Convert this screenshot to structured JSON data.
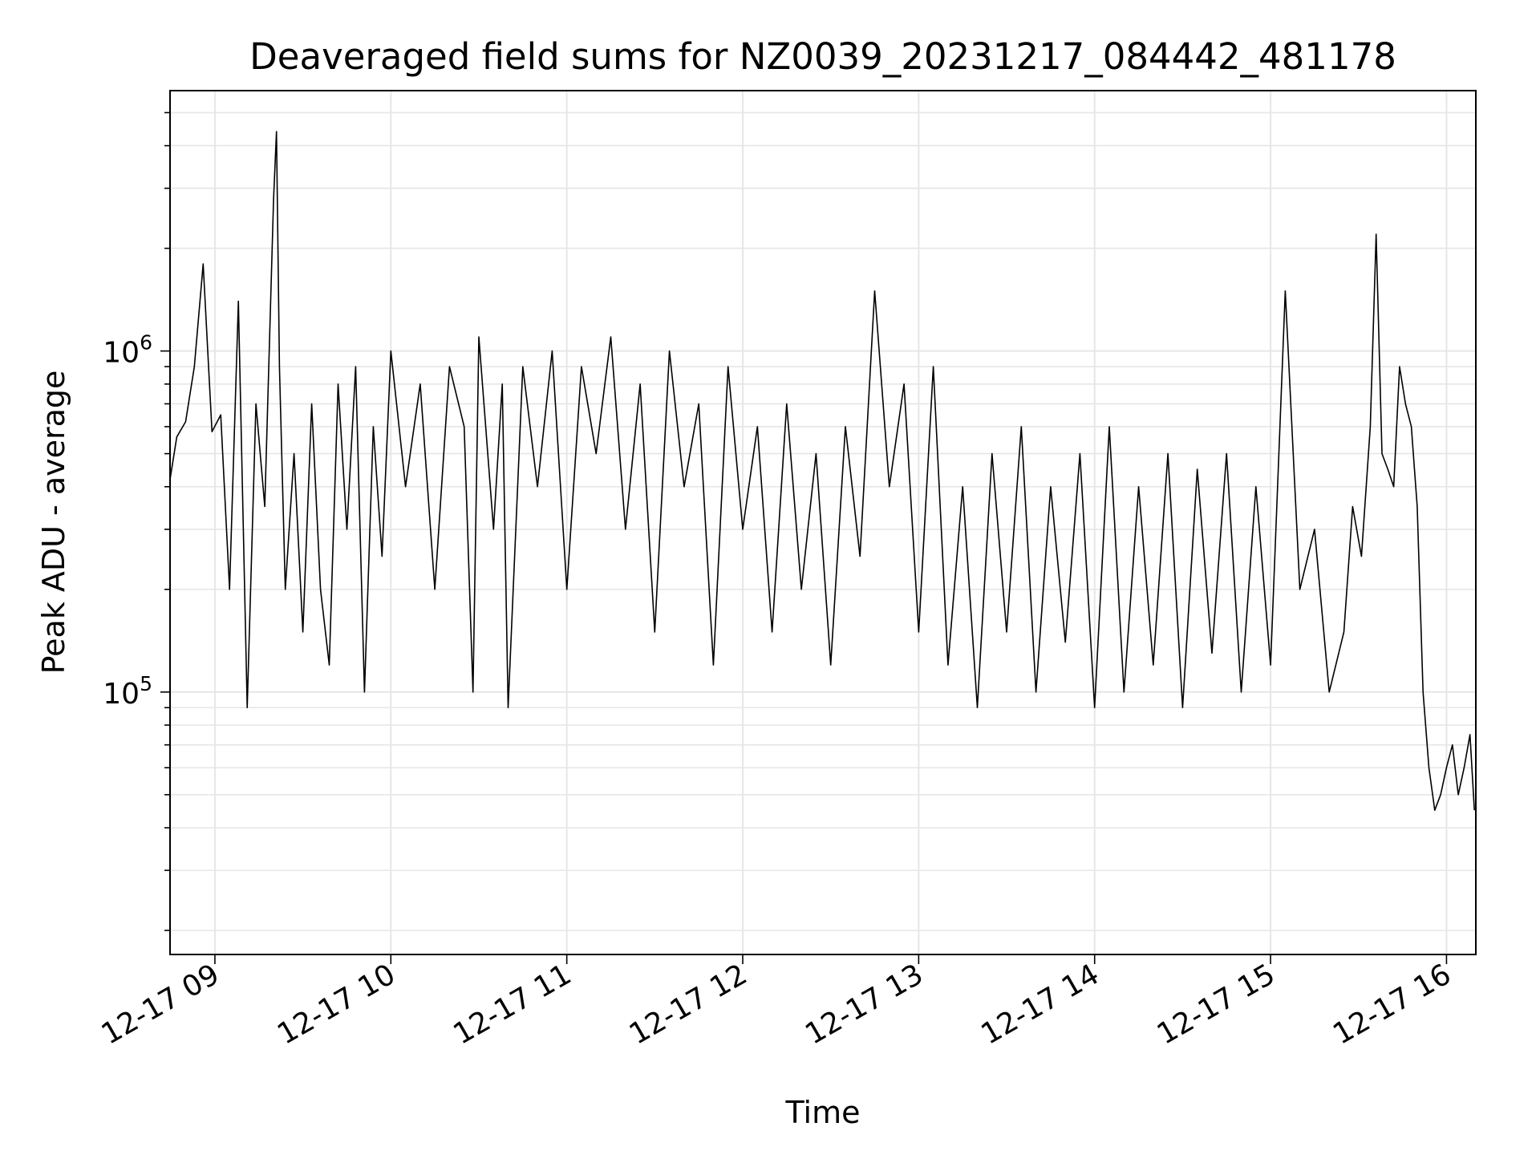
{
  "chart_data": {
    "type": "line",
    "title": "Deaveraged field sums for NZ0039_20231217_084442_481178",
    "xlabel": "Time",
    "ylabel": "Peak ADU - average",
    "xlim": [
      "2023-12-17T08:44:42",
      "2023-12-17T16:10:00"
    ],
    "ylim": [
      17000,
      5800000
    ],
    "yscale": "log",
    "grid": true,
    "legend": "none",
    "line_color": "#000000",
    "x_ticks": [
      {
        "time": "2023-12-17T09:00:00",
        "label": "12-17 09"
      },
      {
        "time": "2023-12-17T10:00:00",
        "label": "12-17 10"
      },
      {
        "time": "2023-12-17T11:00:00",
        "label": "12-17 11"
      },
      {
        "time": "2023-12-17T12:00:00",
        "label": "12-17 12"
      },
      {
        "time": "2023-12-17T13:00:00",
        "label": "12-17 13"
      },
      {
        "time": "2023-12-17T14:00:00",
        "label": "12-17 14"
      },
      {
        "time": "2023-12-17T15:00:00",
        "label": "12-17 15"
      },
      {
        "time": "2023-12-17T16:00:00",
        "label": "12-17 16"
      }
    ],
    "y_ticks": [
      {
        "value": 100000,
        "base": "10",
        "exponent": "5"
      },
      {
        "value": 1000000,
        "base": "10",
        "exponent": "6"
      }
    ],
    "series": [
      {
        "name": "",
        "x": [
          "2023-12-17T08:44:42",
          "2023-12-17T08:47:00",
          "2023-12-17T08:50:00",
          "2023-12-17T08:53:00",
          "2023-12-17T08:56:00",
          "2023-12-17T08:59:00",
          "2023-12-17T09:02:00",
          "2023-12-17T09:05:00",
          "2023-12-17T09:08:00",
          "2023-12-17T09:11:00",
          "2023-12-17T09:14:00",
          "2023-12-17T09:17:00",
          "2023-12-17T09:20:00",
          "2023-12-17T09:21:00",
          "2023-12-17T09:22:00",
          "2023-12-17T09:24:00",
          "2023-12-17T09:27:00",
          "2023-12-17T09:30:00",
          "2023-12-17T09:33:00",
          "2023-12-17T09:36:00",
          "2023-12-17T09:39:00",
          "2023-12-17T09:42:00",
          "2023-12-17T09:45:00",
          "2023-12-17T09:48:00",
          "2023-12-17T09:51:00",
          "2023-12-17T09:54:00",
          "2023-12-17T09:57:00",
          "2023-12-17T10:00:00",
          "2023-12-17T10:05:00",
          "2023-12-17T10:10:00",
          "2023-12-17T10:15:00",
          "2023-12-17T10:20:00",
          "2023-12-17T10:25:00",
          "2023-12-17T10:28:00",
          "2023-12-17T10:30:00",
          "2023-12-17T10:35:00",
          "2023-12-17T10:38:00",
          "2023-12-17T10:40:00",
          "2023-12-17T10:45:00",
          "2023-12-17T10:50:00",
          "2023-12-17T10:55:00",
          "2023-12-17T11:00:00",
          "2023-12-17T11:05:00",
          "2023-12-17T11:10:00",
          "2023-12-17T11:15:00",
          "2023-12-17T11:20:00",
          "2023-12-17T11:25:00",
          "2023-12-17T11:30:00",
          "2023-12-17T11:35:00",
          "2023-12-17T11:40:00",
          "2023-12-17T11:45:00",
          "2023-12-17T11:50:00",
          "2023-12-17T11:55:00",
          "2023-12-17T12:00:00",
          "2023-12-17T12:05:00",
          "2023-12-17T12:10:00",
          "2023-12-17T12:15:00",
          "2023-12-17T12:20:00",
          "2023-12-17T12:25:00",
          "2023-12-17T12:30:00",
          "2023-12-17T12:35:00",
          "2023-12-17T12:40:00",
          "2023-12-17T12:45:00",
          "2023-12-17T12:50:00",
          "2023-12-17T12:55:00",
          "2023-12-17T13:00:00",
          "2023-12-17T13:05:00",
          "2023-12-17T13:10:00",
          "2023-12-17T13:15:00",
          "2023-12-17T13:20:00",
          "2023-12-17T13:25:00",
          "2023-12-17T13:30:00",
          "2023-12-17T13:35:00",
          "2023-12-17T13:40:00",
          "2023-12-17T13:45:00",
          "2023-12-17T13:50:00",
          "2023-12-17T13:55:00",
          "2023-12-17T14:00:00",
          "2023-12-17T14:05:00",
          "2023-12-17T14:10:00",
          "2023-12-17T14:15:00",
          "2023-12-17T14:20:00",
          "2023-12-17T14:25:00",
          "2023-12-17T14:30:00",
          "2023-12-17T14:35:00",
          "2023-12-17T14:40:00",
          "2023-12-17T14:45:00",
          "2023-12-17T14:50:00",
          "2023-12-17T14:55:00",
          "2023-12-17T15:00:00",
          "2023-12-17T15:05:00",
          "2023-12-17T15:10:00",
          "2023-12-17T15:15:00",
          "2023-12-17T15:20:00",
          "2023-12-17T15:25:00",
          "2023-12-17T15:28:00",
          "2023-12-17T15:31:00",
          "2023-12-17T15:34:00",
          "2023-12-17T15:36:00",
          "2023-12-17T15:38:00",
          "2023-12-17T15:40:00",
          "2023-12-17T15:42:00",
          "2023-12-17T15:44:00",
          "2023-12-17T15:46:00",
          "2023-12-17T15:48:00",
          "2023-12-17T15:50:00",
          "2023-12-17T15:52:00",
          "2023-12-17T15:54:00",
          "2023-12-17T15:56:00",
          "2023-12-17T15:58:00",
          "2023-12-17T16:00:00",
          "2023-12-17T16:02:00",
          "2023-12-17T16:04:00",
          "2023-12-17T16:06:00",
          "2023-12-17T16:08:00",
          "2023-12-17T16:09:30"
        ],
        "y": [
          420000,
          560000,
          620000,
          900000,
          1800000,
          580000,
          650000,
          200000,
          1400000,
          90000,
          700000,
          350000,
          2800000,
          4400000,
          900000,
          200000,
          500000,
          150000,
          700000,
          200000,
          120000,
          800000,
          300000,
          900000,
          100000,
          600000,
          250000,
          1000000,
          400000,
          800000,
          200000,
          900000,
          600000,
          100000,
          1100000,
          300000,
          800000,
          90000,
          900000,
          400000,
          1000000,
          200000,
          900000,
          500000,
          1100000,
          300000,
          800000,
          150000,
          1000000,
          400000,
          700000,
          120000,
          900000,
          300000,
          600000,
          150000,
          700000,
          200000,
          500000,
          120000,
          600000,
          250000,
          1500000,
          400000,
          800000,
          150000,
          900000,
          120000,
          400000,
          90000,
          500000,
          150000,
          600000,
          100000,
          400000,
          140000,
          500000,
          90000,
          600000,
          100000,
          400000,
          120000,
          500000,
          90000,
          450000,
          130000,
          500000,
          100000,
          400000,
          120000,
          1500000,
          200000,
          300000,
          100000,
          150000,
          350000,
          250000,
          600000,
          2200000,
          500000,
          450000,
          400000,
          900000,
          700000,
          600000,
          350000,
          100000,
          60000,
          45000,
          50000,
          60000,
          70000,
          50000,
          60000,
          75000,
          45000
        ]
      }
    ]
  }
}
